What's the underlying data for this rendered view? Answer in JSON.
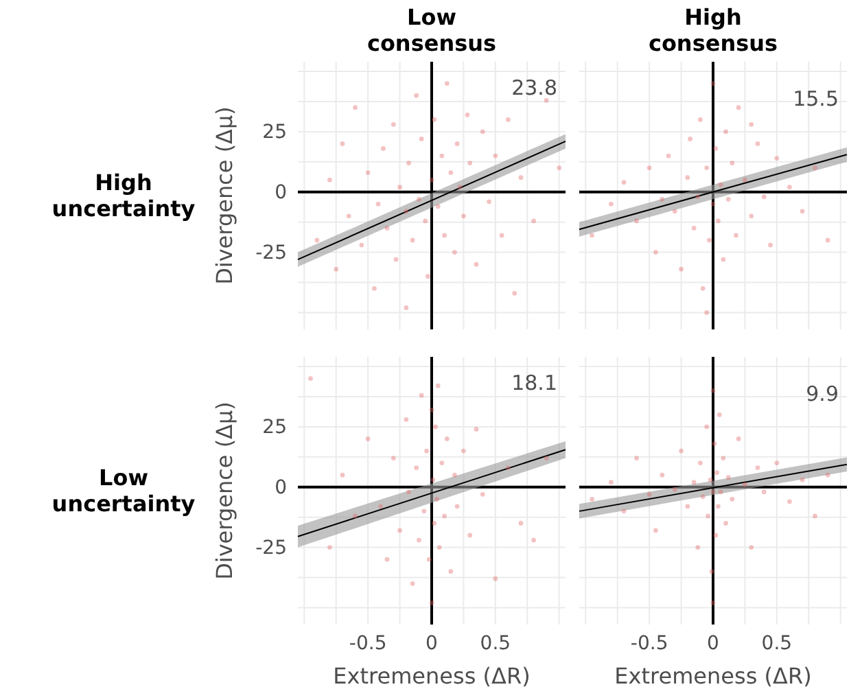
{
  "chart_data": [
    {
      "type": "scatter",
      "title": "Low consensus",
      "ylabel": "Divergence (Δμ)",
      "annotations": [
        "23.8",
        "High uncertainty"
      ],
      "xlim": [
        -1.05,
        1.05
      ],
      "ylim": [
        -57,
        54
      ],
      "xticks": [
        {
          "value": -1,
          "label": null
        },
        {
          "value": -0.75,
          "label": null
        },
        -0.5,
        {
          "value": -0.25,
          "label": null
        },
        0,
        {
          "value": 0.25,
          "label": null
        },
        0.5,
        {
          "value": 0.75,
          "label": null
        },
        {
          "value": 1,
          "label": null
        }
      ],
      "yticks": [
        {
          "value": -50,
          "label": null
        },
        {
          "value": -37.5,
          "label": null
        },
        -25,
        {
          "value": -12.5,
          "label": null
        },
        0,
        {
          "value": 12.5,
          "label": null
        },
        25,
        {
          "value": 37.5,
          "label": null
        },
        {
          "value": 50,
          "label": null
        }
      ],
      "tick_labels": "y",
      "grid": true,
      "marker": "circle",
      "series": [
        {
          "type": "scatter",
          "color": "#e06666",
          "x": [
            -0.9,
            -0.8,
            -0.75,
            -0.7,
            -0.65,
            -0.6,
            -0.55,
            -0.5,
            -0.45,
            -0.42,
            -0.38,
            -0.35,
            -0.3,
            -0.28,
            -0.25,
            -0.2,
            -0.18,
            -0.15,
            -0.12,
            -0.1,
            -0.08,
            -0.05,
            -0.03,
            0,
            0.02,
            0.05,
            0.08,
            0.1,
            0.12,
            0.15,
            0.18,
            0.2,
            0.22,
            0.25,
            0.28,
            0.3,
            0.35,
            0.4,
            0.45,
            0.5,
            0.55,
            0.6,
            0.7,
            0.8,
            0.9,
            1.0,
            0.65,
            -0.2
          ],
          "values": [
            -20,
            5,
            -32,
            20,
            -10,
            35,
            -22,
            8,
            -40,
            -5,
            18,
            -15,
            28,
            -28,
            2,
            -8,
            12,
            -20,
            40,
            -3,
            22,
            -12,
            -35,
            5,
            30,
            -6,
            15,
            -18,
            45,
            8,
            -25,
            20,
            2,
            -10,
            32,
            12,
            -30,
            25,
            -4,
            15,
            -18,
            30,
            6,
            -12,
            38,
            10,
            -42,
            -48
          ]
        },
        {
          "type": "line",
          "marker": "none",
          "color": "#000000",
          "x": [
            -1.05,
            1.05
          ],
          "values": [
            -28,
            21
          ],
          "lower": [
            -31,
            18
          ],
          "upper": [
            -25,
            24
          ]
        }
      ]
    },
    {
      "type": "scatter",
      "title": "High consensus",
      "annotations": [
        "15.5"
      ],
      "xlim": [
        -1.05,
        1.05
      ],
      "ylim": [
        -57,
        54
      ],
      "xticks": [
        {
          "value": -1,
          "label": null
        },
        {
          "value": -0.75,
          "label": null
        },
        -0.5,
        {
          "value": -0.25,
          "label": null
        },
        0,
        {
          "value": 0.25,
          "label": null
        },
        0.5,
        {
          "value": 0.75,
          "label": null
        },
        {
          "value": 1,
          "label": null
        }
      ],
      "yticks": [
        {
          "value": -50,
          "label": null
        },
        {
          "value": -37.5,
          "label": null
        },
        -25,
        {
          "value": -12.5,
          "label": null
        },
        0,
        {
          "value": 12.5,
          "label": null
        },
        25,
        {
          "value": 37.5,
          "label": null
        },
        {
          "value": 50,
          "label": null
        }
      ],
      "tick_labels": false,
      "grid": true,
      "marker": "circle",
      "series": [
        {
          "type": "scatter",
          "color": "#e06666",
          "x": [
            -0.95,
            -0.8,
            -0.7,
            -0.6,
            -0.5,
            -0.45,
            -0.4,
            -0.35,
            -0.3,
            -0.25,
            -0.2,
            -0.18,
            -0.15,
            -0.12,
            -0.1,
            -0.08,
            -0.05,
            -0.03,
            0,
            0,
            0.02,
            0.04,
            0.06,
            0.08,
            0.1,
            0.12,
            0.15,
            0.18,
            0.2,
            0.25,
            0.3,
            0.35,
            0.4,
            0.45,
            0.5,
            0.6,
            0.7,
            0.8,
            0.9,
            -0.05,
            0.3
          ],
          "values": [
            -18,
            -5,
            4,
            -12,
            10,
            -25,
            -3,
            15,
            -8,
            -32,
            6,
            22,
            -15,
            -2,
            30,
            -40,
            10,
            -20,
            45,
            -5,
            18,
            -12,
            3,
            -28,
            25,
            -3,
            12,
            -18,
            35,
            5,
            -10,
            20,
            -2,
            -22,
            14,
            2,
            -8,
            10,
            -20,
            -50,
            28
          ]
        },
        {
          "type": "line",
          "marker": "none",
          "color": "#000000",
          "x": [
            -1.05,
            1.05
          ],
          "values": [
            -15.5,
            15.5
          ],
          "lower": [
            -18.5,
            12.5
          ],
          "upper": [
            -12.5,
            18.5
          ]
        }
      ]
    },
    {
      "type": "scatter",
      "xlabel": "Extremeness (ΔR)",
      "ylabel": "Divergence (Δμ)",
      "annotations": [
        "18.1",
        "Low uncertainty"
      ],
      "xlim": [
        -1.05,
        1.05
      ],
      "ylim": [
        -57,
        54
      ],
      "xticks": [
        {
          "value": -1,
          "label": null
        },
        {
          "value": -0.75,
          "label": null
        },
        -0.5,
        {
          "value": -0.25,
          "label": null
        },
        0,
        {
          "value": 0.25,
          "label": null
        },
        0.5,
        {
          "value": 0.75,
          "label": null
        },
        {
          "value": 1,
          "label": null
        }
      ],
      "yticks": [
        {
          "value": -50,
          "label": null
        },
        {
          "value": -37.5,
          "label": null
        },
        -25,
        {
          "value": -12.5,
          "label": null
        },
        0,
        {
          "value": 12.5,
          "label": null
        },
        25,
        {
          "value": 37.5,
          "label": null
        },
        {
          "value": 50,
          "label": null
        }
      ],
      "grid": true,
      "marker": "circle",
      "series": [
        {
          "type": "scatter",
          "color": "#e06666",
          "x": [
            -0.95,
            -0.8,
            -0.7,
            -0.6,
            -0.5,
            -0.4,
            -0.35,
            -0.3,
            -0.25,
            -0.2,
            -0.18,
            -0.15,
            -0.12,
            -0.1,
            -0.08,
            -0.06,
            -0.04,
            -0.02,
            0,
            0,
            0.01,
            0.02,
            0.03,
            0.04,
            0.05,
            0.06,
            0.08,
            0.1,
            0.12,
            0.15,
            0.18,
            0.2,
            0.25,
            0.3,
            0.35,
            0.4,
            0.5,
            0.6,
            0.7,
            0.8,
            0.9
          ],
          "values": [
            45,
            -25,
            5,
            -12,
            20,
            -8,
            -30,
            12,
            -18,
            28,
            -2,
            -40,
            8,
            -22,
            38,
            -10,
            15,
            -30,
            32,
            -48,
            3,
            -15,
            25,
            -5,
            42,
            -25,
            10,
            -12,
            20,
            -35,
            5,
            -8,
            15,
            -20,
            24,
            -3,
            -38,
            8,
            -15,
            -22,
            12
          ]
        },
        {
          "type": "line",
          "marker": "none",
          "color": "#000000",
          "x": [
            -1.05,
            1.05
          ],
          "values": [
            -20.5,
            15.5
          ],
          "lower": [
            -25,
            12
          ],
          "upper": [
            -16,
            19
          ]
        }
      ]
    },
    {
      "type": "scatter",
      "xlabel": "Extremeness (ΔR)",
      "annotations": [
        "9.9"
      ],
      "xlim": [
        -1.05,
        1.05
      ],
      "ylim": [
        -57,
        54
      ],
      "xticks": [
        {
          "value": -1,
          "label": null
        },
        {
          "value": -0.75,
          "label": null
        },
        -0.5,
        {
          "value": -0.25,
          "label": null
        },
        0,
        {
          "value": 0.25,
          "label": null
        },
        0.5,
        {
          "value": 0.75,
          "label": null
        },
        {
          "value": 1,
          "label": null
        }
      ],
      "yticks": [
        {
          "value": -50,
          "label": null
        },
        {
          "value": -37.5,
          "label": null
        },
        -25,
        {
          "value": -12.5,
          "label": null
        },
        0,
        {
          "value": 12.5,
          "label": null
        },
        25,
        {
          "value": 37.5,
          "label": null
        },
        {
          "value": 50,
          "label": null
        }
      ],
      "tick_labels": "x",
      "grid": true,
      "marker": "circle",
      "series": [
        {
          "type": "scatter",
          "color": "#e06666",
          "x": [
            -0.95,
            -0.8,
            -0.7,
            -0.6,
            -0.5,
            -0.45,
            -0.4,
            -0.3,
            -0.25,
            -0.2,
            -0.15,
            -0.12,
            -0.1,
            -0.08,
            -0.05,
            -0.04,
            -0.02,
            -0.01,
            0,
            0,
            0,
            0.01,
            0.02,
            0.03,
            0.04,
            0.05,
            0.06,
            0.08,
            0.1,
            0.12,
            0.15,
            0.2,
            0.25,
            0.3,
            0.35,
            0.4,
            0.5,
            0.6,
            0.7,
            0.8,
            0.9
          ],
          "values": [
            -5,
            2,
            -10,
            12,
            -3,
            -18,
            5,
            -1,
            15,
            -8,
            2,
            -25,
            10,
            -4,
            25,
            -12,
            3,
            -35,
            40,
            -2,
            -48,
            18,
            -20,
            6,
            -8,
            30,
            -2,
            12,
            -15,
            4,
            -5,
            20,
            1,
            -25,
            8,
            -2,
            10,
            -6,
            3,
            -12,
            5
          ]
        },
        {
          "type": "line",
          "marker": "none",
          "color": "#000000",
          "x": [
            -1.05,
            1.05
          ],
          "values": [
            -10,
            9.4
          ],
          "lower": [
            -13,
            6.5
          ],
          "upper": [
            -7,
            12.3
          ]
        }
      ]
    }
  ]
}
